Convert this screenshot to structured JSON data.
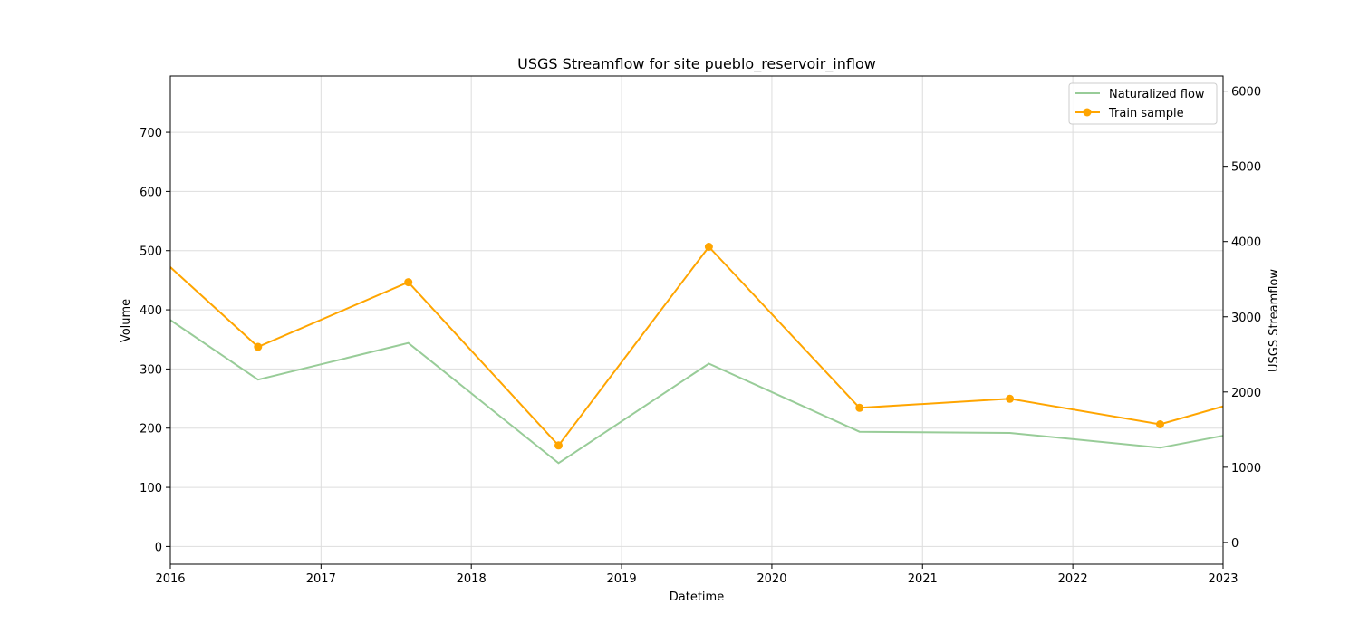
{
  "chart_data": {
    "type": "line",
    "title": "USGS Streamflow for site pueblo_reservoir_inflow",
    "xlabel": "Datetime",
    "ylabel_left": "Volume",
    "ylabel_right": "USGS Streamflow",
    "x_ticks": [
      "2016",
      "2017",
      "2018",
      "2019",
      "2020",
      "2021",
      "2022",
      "2023"
    ],
    "xlim": [
      "2016-01-01",
      "2023-01-01"
    ],
    "ylim_left": [
      -30,
      795
    ],
    "yticks_left": [
      0,
      100,
      200,
      300,
      400,
      500,
      600,
      700
    ],
    "ylim_right": [
      -290,
      6200
    ],
    "yticks_right": [
      0,
      1000,
      2000,
      3000,
      4000,
      5000,
      6000
    ],
    "grid": true,
    "legend_position": "top-right",
    "series": [
      {
        "name": "Naturalized flow",
        "axis": "left",
        "color": "#98cc98",
        "marker": false,
        "x": [
          "2015-08-01",
          "2016-08-01",
          "2017-08-01",
          "2018-08-01",
          "2019-08-01",
          "2020-08-01",
          "2021-08-01",
          "2022-08-01",
          "2023-08-01"
        ],
        "values": [
          455,
          282,
          344,
          141,
          309,
          194,
          192,
          167,
          215
        ]
      },
      {
        "name": "Train sample",
        "axis": "right",
        "color": "#ffa500",
        "marker": true,
        "x": [
          "2015-08-01",
          "2016-08-01",
          "2017-08-01",
          "2018-08-01",
          "2019-08-01",
          "2020-08-01",
          "2021-08-01",
          "2022-08-01",
          "2023-08-01"
        ],
        "values": [
          4420,
          2600,
          3460,
          1290,
          3930,
          1790,
          1910,
          1570,
          2140
        ]
      }
    ]
  }
}
